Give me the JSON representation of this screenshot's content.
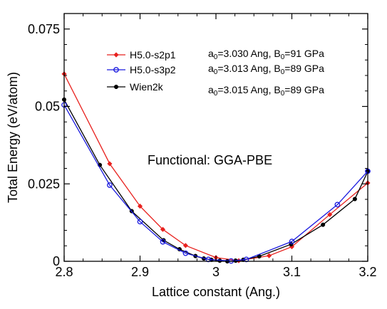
{
  "chart_data": {
    "type": "line",
    "xlabel": "Lattice constant (Ang.)",
    "ylabel": "Total Energy (eV/atom)",
    "xlim": [
      2.8,
      3.2
    ],
    "ylim": [
      0,
      0.08
    ],
    "xticks": [
      2.8,
      2.9,
      3.0,
      3.1,
      3.2
    ],
    "xtick_labels": [
      "2.8",
      "2.9",
      "3",
      "3.1",
      "3.2"
    ],
    "yticks": [
      0,
      0.025,
      0.05,
      0.075
    ],
    "ytick_labels": [
      "0",
      "0.025",
      "0.05",
      "0.075"
    ],
    "grid": false,
    "legend_position": "top-left",
    "annotation": "Functional: GGA-PBE",
    "series": [
      {
        "name": "H5.0-s2p1",
        "color": "#e8211e",
        "marker": "diamond",
        "fit": [
          "a",
          "0",
          "=3.030 Ang, B",
          "0",
          "=91 GPa"
        ],
        "x": [
          2.8,
          2.86,
          2.9,
          2.93,
          2.96,
          3.0,
          3.03,
          3.07,
          3.1,
          3.15,
          3.2
        ],
        "y": [
          0.0605,
          0.0315,
          0.0178,
          0.0103,
          0.0051,
          0.0012,
          0.0002,
          0.0018,
          0.0047,
          0.0151,
          0.0253
        ]
      },
      {
        "name": "H5.0-s3p2",
        "color": "#1a1adf",
        "marker": "open-circle",
        "fit": [
          "a",
          "0",
          "=3.013 Ang, B",
          "0",
          "=89 GPa"
        ],
        "x": [
          2.8,
          2.86,
          2.9,
          2.93,
          2.96,
          2.99,
          3.02,
          3.04,
          3.1,
          3.16,
          3.2
        ],
        "y": [
          0.0505,
          0.0246,
          0.0128,
          0.0063,
          0.0026,
          0.0006,
          0.0001,
          0.0006,
          0.0064,
          0.0183,
          0.0291
        ]
      },
      {
        "name": "Wien2k",
        "color": "#000000",
        "marker": "filled-circle",
        "fit": [
          "a",
          "0",
          "=3.015 Ang, B",
          "0",
          "=89 GPa"
        ],
        "x": [
          2.8,
          2.847,
          2.889,
          2.931,
          2.952,
          2.973,
          2.984,
          2.994,
          3.005,
          3.015,
          3.026,
          3.036,
          3.057,
          3.099,
          3.141,
          3.183,
          3.2
        ],
        "y": [
          0.0522,
          0.0311,
          0.0162,
          0.0068,
          0.0039,
          0.0017,
          0.0009,
          0.0005,
          0.0002,
          0.0,
          0.0002,
          0.0005,
          0.0016,
          0.0055,
          0.0118,
          0.0201,
          0.029
        ]
      }
    ]
  }
}
